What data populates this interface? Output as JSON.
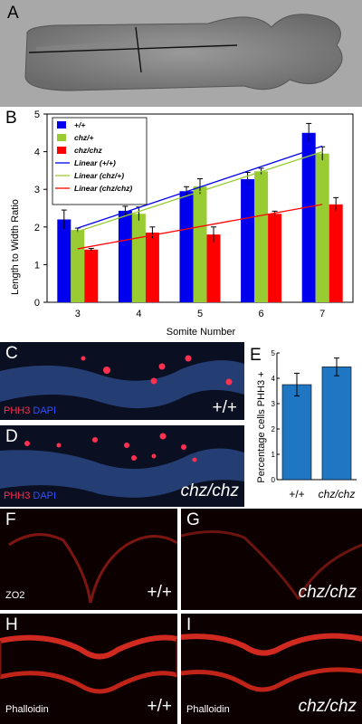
{
  "panels": {
    "A": {
      "label": "A"
    },
    "B": {
      "label": "B"
    },
    "C": {
      "label": "C",
      "stain1": "PHH3",
      "stain2": "DAPI",
      "genotype": "+/+"
    },
    "D": {
      "label": "D",
      "stain1": "PHH3",
      "stain2": "DAPI",
      "genotype": "chz/chz"
    },
    "E": {
      "label": "E"
    },
    "F": {
      "label": "F",
      "stain": "ZO2",
      "genotype": "+/+"
    },
    "G": {
      "label": "G",
      "stain": "ZO2",
      "genotype": "chz/chz"
    },
    "H": {
      "label": "H",
      "stain": "Phalloidin",
      "genotype": "+/+"
    },
    "I": {
      "label": "I",
      "stain": "Phalloidin",
      "genotype": "chz/chz"
    }
  },
  "colors": {
    "wt": "#0000ee",
    "het": "#99cc33",
    "mut": "#ff0000",
    "e_bar": "#1f77c4"
  },
  "chart_data": [
    {
      "type": "bar",
      "panel": "B",
      "xlabel": "Somite Number",
      "ylabel": "Length to Width Ratio",
      "categories": [
        "3",
        "4",
        "5",
        "6",
        "7"
      ],
      "ylim": [
        0,
        5
      ],
      "yticks": [
        "0",
        "1",
        "2",
        "3",
        "4",
        "5"
      ],
      "grid": false,
      "legend_position": "top-left",
      "series": [
        {
          "name": "+/+",
          "color": "#0000ee",
          "values": [
            2.2,
            2.43,
            2.95,
            3.27,
            4.5
          ],
          "errors": [
            0.25,
            0.12,
            0.12,
            0.18,
            0.25
          ]
        },
        {
          "name": "chz/+",
          "color": "#99cc33",
          "values": [
            1.92,
            2.35,
            3.08,
            3.48,
            3.95
          ],
          "errors": [
            0.05,
            0.18,
            0.2,
            0.08,
            0.18
          ]
        },
        {
          "name": "chz/chz",
          "color": "#ff0000",
          "values": [
            1.4,
            1.85,
            1.8,
            2.35,
            2.6
          ],
          "errors": [
            0.03,
            0.15,
            0.2,
            0.07,
            0.18
          ]
        }
      ],
      "trendlines": [
        {
          "name": "Linear (+/+)",
          "color": "#0000ee",
          "from": 1.97,
          "to": 4.15
        },
        {
          "name": "Linear (chz/+)",
          "color": "#99cc33",
          "from": 1.88,
          "to": 4.0
        },
        {
          "name": "Linear (chz/chz)",
          "color": "#ff0000",
          "from": 1.42,
          "to": 2.6
        }
      ]
    },
    {
      "type": "bar",
      "panel": "E",
      "xlabel": "",
      "ylabel": "Percentage cells PHH3 +",
      "categories": [
        "+/+",
        "chz/chz"
      ],
      "ylim": [
        0,
        5
      ],
      "yticks": [
        "0",
        "1",
        "2",
        "3",
        "4",
        "5"
      ],
      "grid": false,
      "series": [
        {
          "values": [
            3.75,
            4.45
          ],
          "errors": [
            0.45,
            0.35
          ],
          "color": "#1f77c4"
        }
      ]
    }
  ]
}
